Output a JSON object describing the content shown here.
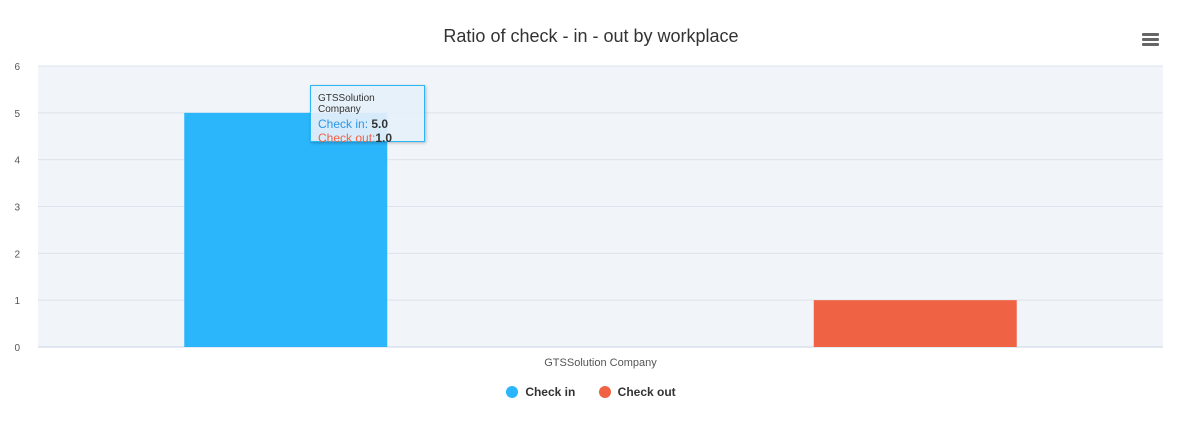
{
  "chart_data": {
    "type": "bar",
    "title": "Ratio of check - in - out by workplace",
    "categories": [
      "GTSSolution Company"
    ],
    "series": [
      {
        "name": "Check in",
        "values": [
          5
        ],
        "color": "#2bb6fb"
      },
      {
        "name": "Check out",
        "values": [
          1
        ],
        "color": "#f06244"
      }
    ],
    "ylim": [
      0,
      6
    ],
    "yticks": [
      0,
      1,
      2,
      3,
      4,
      5,
      6
    ],
    "grid": true,
    "legend": "bottom-center",
    "plot_background": "#f1f4f9",
    "tooltip": {
      "title": "GTSSolution Company",
      "rows": [
        {
          "label": "Check in:",
          "value": "5.0",
          "color": "#2b96e6"
        },
        {
          "label": "Check out:",
          "value": "1.0",
          "color": "#f06244"
        }
      ]
    }
  },
  "menu": {
    "icon": "hamburger-menu-icon"
  }
}
